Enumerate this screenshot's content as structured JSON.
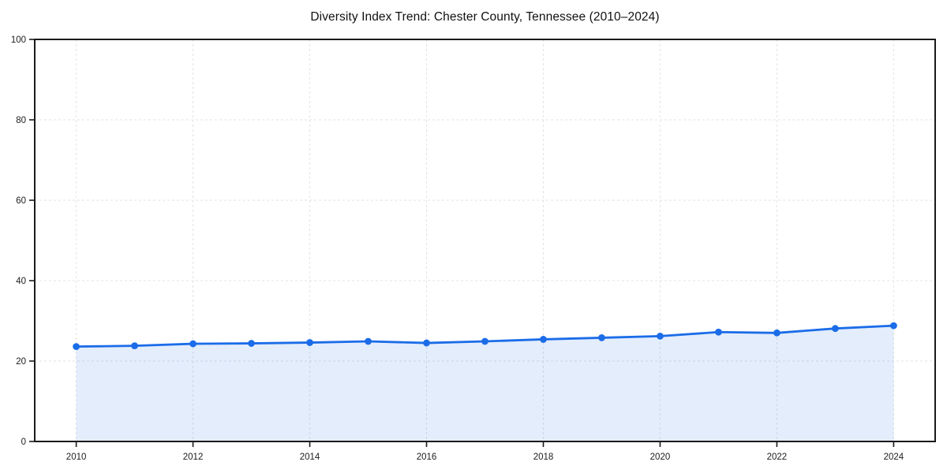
{
  "chart_data": {
    "type": "area",
    "title": "Diversity Index Trend: Chester County, Tennessee (2010–2024)",
    "x": [
      2010,
      2011,
      2012,
      2013,
      2014,
      2015,
      2016,
      2017,
      2018,
      2019,
      2020,
      2021,
      2022,
      2023,
      2024
    ],
    "series": [
      {
        "name": "Diversity Index",
        "values": [
          23.6,
          23.8,
          24.3,
          24.4,
          24.6,
          24.9,
          24.5,
          24.9,
          25.4,
          25.8,
          26.2,
          27.2,
          27.0,
          28.1,
          28.8
        ]
      }
    ],
    "xlabel": "",
    "ylabel": "",
    "ylim": [
      0,
      100
    ],
    "yticks": [
      0,
      20,
      40,
      60,
      80,
      100
    ],
    "xticks": [
      2010,
      2012,
      2014,
      2016,
      2018,
      2020,
      2022,
      2024
    ],
    "grid": true,
    "grid_style": "dashed",
    "legend": false,
    "marker": "circle",
    "colors": {
      "line": "#1b6ce8",
      "marker": "#1b6ce8",
      "fill": "rgba(27,108,232,0.12)",
      "grid": "#e3e3e3",
      "axis": "#1a1a1a",
      "tick_label": "#1c1c1c",
      "background": "#ffffff"
    }
  }
}
